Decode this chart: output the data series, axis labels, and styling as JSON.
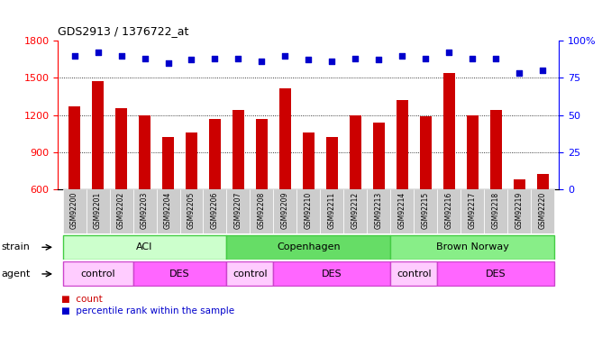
{
  "title": "GDS2913 / 1376722_at",
  "samples": [
    "GSM92200",
    "GSM92201",
    "GSM92202",
    "GSM92203",
    "GSM92204",
    "GSM92205",
    "GSM92206",
    "GSM92207",
    "GSM92208",
    "GSM92209",
    "GSM92210",
    "GSM92211",
    "GSM92212",
    "GSM92213",
    "GSM92214",
    "GSM92215",
    "GSM92216",
    "GSM92217",
    "GSM92218",
    "GSM92219",
    "GSM92220"
  ],
  "counts": [
    1270,
    1475,
    1255,
    1200,
    1020,
    1060,
    1165,
    1240,
    1170,
    1415,
    1060,
    1020,
    1195,
    1135,
    1320,
    1190,
    1540,
    1195,
    1240,
    680,
    725
  ],
  "percentiles": [
    90,
    92,
    90,
    88,
    85,
    87,
    88,
    88,
    86,
    90,
    87,
    86,
    88,
    87,
    90,
    88,
    92,
    88,
    88,
    78,
    80
  ],
  "bar_color": "#cc0000",
  "dot_color": "#0000cc",
  "ylim_left": [
    600,
    1800
  ],
  "ylim_right": [
    0,
    100
  ],
  "yticks_left": [
    600,
    900,
    1200,
    1500,
    1800
  ],
  "yticks_right": [
    0,
    25,
    50,
    75,
    100
  ],
  "yright_labels": [
    "0",
    "25",
    "50",
    "75",
    "100%"
  ],
  "grid_values": [
    900,
    1200,
    1500
  ],
  "strain_groups": [
    {
      "label": "ACI",
      "start": 0,
      "end": 6,
      "color": "#ccffcc",
      "border_color": "#44cc44"
    },
    {
      "label": "Copenhagen",
      "start": 7,
      "end": 13,
      "color": "#66dd66",
      "border_color": "#44cc44"
    },
    {
      "label": "Brown Norway",
      "start": 14,
      "end": 20,
      "color": "#88ee88",
      "border_color": "#44cc44"
    }
  ],
  "agent_groups": [
    {
      "label": "control",
      "start": 0,
      "end": 2,
      "color": "#ffccff",
      "border_color": "#cc44cc"
    },
    {
      "label": "DES",
      "start": 3,
      "end": 6,
      "color": "#ff66ff",
      "border_color": "#cc44cc"
    },
    {
      "label": "control",
      "start": 7,
      "end": 8,
      "color": "#ffccff",
      "border_color": "#cc44cc"
    },
    {
      "label": "DES",
      "start": 9,
      "end": 13,
      "color": "#ff66ff",
      "border_color": "#cc44cc"
    },
    {
      "label": "control",
      "start": 14,
      "end": 15,
      "color": "#ffccff",
      "border_color": "#cc44cc"
    },
    {
      "label": "DES",
      "start": 16,
      "end": 20,
      "color": "#ff66ff",
      "border_color": "#cc44cc"
    }
  ],
  "strain_label": "strain",
  "agent_label": "agent",
  "legend_count_label": "count",
  "legend_pct_label": "percentile rank within the sample",
  "tick_bg_color": "#cccccc",
  "bar_width": 0.5,
  "fig_width": 6.78,
  "fig_height": 3.75,
  "dpi": 100
}
